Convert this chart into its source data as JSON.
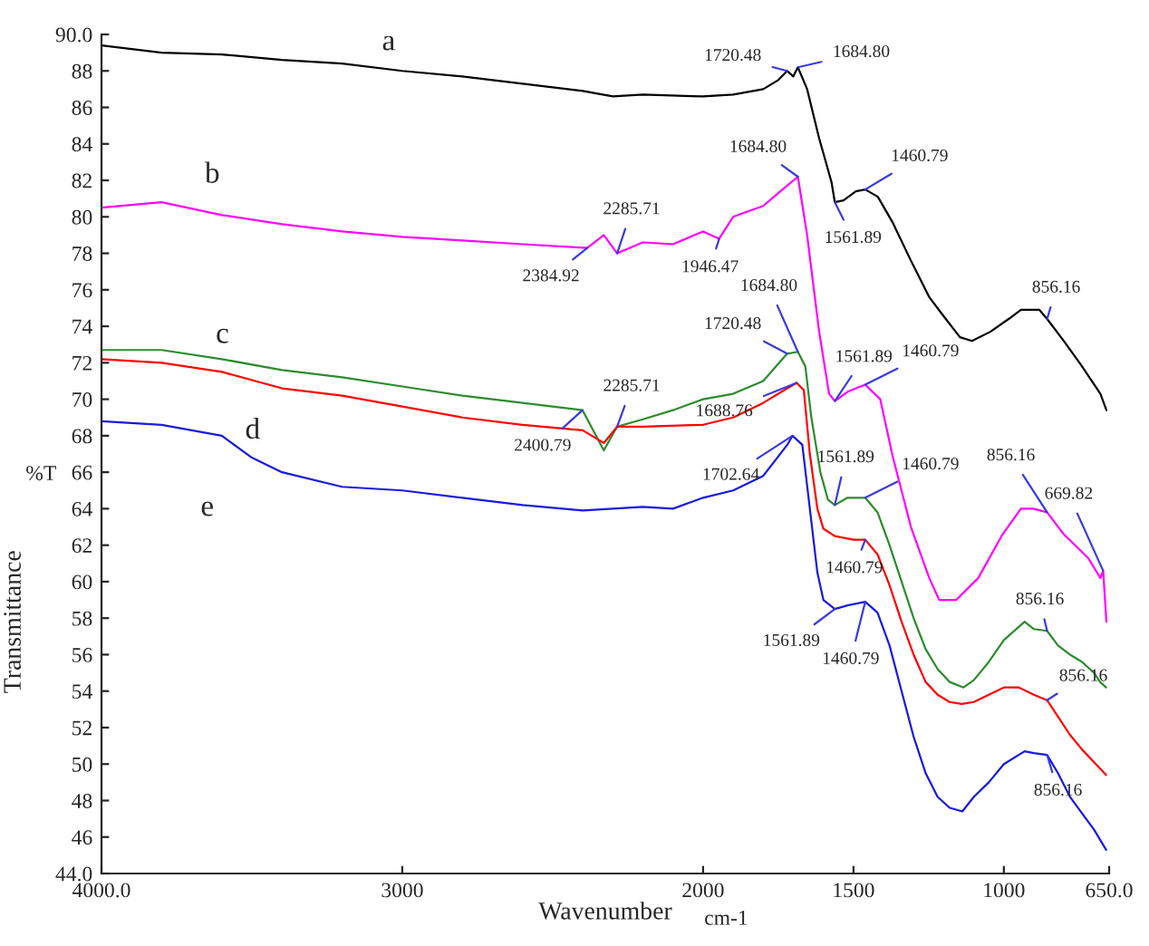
{
  "chart_data": {
    "type": "line",
    "xlabel": "Wavenumber",
    "ylabel": "Transmittance",
    "xlim": [
      4000,
      650
    ],
    "xticks": [
      {
        "value": 4000,
        "label": "4000.0"
      },
      3000,
      2000,
      1500,
      1000,
      {
        "value": 650,
        "label": "650.0"
      }
    ],
    "ylim": [
      44,
      90
    ],
    "yticks": [
      {
        "value": 44,
        "label": "44.0"
      },
      46,
      48,
      50,
      52,
      54,
      56,
      58,
      60,
      62,
      64,
      66,
      68,
      70,
      72,
      74,
      76,
      78,
      80,
      82,
      84,
      86,
      88,
      {
        "value": 90,
        "label": "90.0"
      }
    ],
    "grid": false,
    "marker": "none",
    "line_style": "solid",
    "series": [
      {
        "color": "#000000",
        "x": [
          4000,
          3800,
          3600,
          3400,
          3200,
          3000,
          2800,
          2600,
          2400,
          2300,
          2200,
          2000,
          1900,
          1800,
          1750,
          1720.48,
          1700,
          1684.8,
          1654,
          1614,
          1573,
          1561.89,
          1533,
          1492,
          1460.79,
          1419,
          1370,
          1309,
          1248,
          1207,
          1146,
          1106,
          1045,
          984,
          943,
          882,
          856.16,
          801,
          740,
          679,
          659
        ],
        "values": [
          89.4,
          89.0,
          88.9,
          88.6,
          88.4,
          88.0,
          87.7,
          87.3,
          86.9,
          86.6,
          86.7,
          86.6,
          86.7,
          87.0,
          87.5,
          88.0,
          87.7,
          88.2,
          87.0,
          84.3,
          81.9,
          80.8,
          80.9,
          81.4,
          81.5,
          81.1,
          79.7,
          77.6,
          75.6,
          74.7,
          73.4,
          73.2,
          73.7,
          74.4,
          74.9,
          74.9,
          74.4,
          73.2,
          71.8,
          70.3,
          69.4
        ]
      },
      {
        "color": "#ff00ff",
        "x": [
          4000,
          3800,
          3600,
          3400,
          3200,
          3000,
          2800,
          2600,
          2384.92,
          2330,
          2285.71,
          2200,
          2100,
          2000,
          1946.47,
          1900,
          1800,
          1750,
          1684.8,
          1654,
          1614,
          1581,
          1561.89,
          1520,
          1492,
          1460.79,
          1411,
          1370,
          1309,
          1248,
          1215,
          1158,
          1085,
          1004,
          943,
          902,
          856.16,
          801,
          720,
          679,
          669.82,
          659
        ],
        "values": [
          80.5,
          80.8,
          80.1,
          79.6,
          79.2,
          78.9,
          78.7,
          78.5,
          78.3,
          79.0,
          78.0,
          78.6,
          78.5,
          79.2,
          78.8,
          80.0,
          80.6,
          81.3,
          82.2,
          79.0,
          73.7,
          70.3,
          69.9,
          70.4,
          70.6,
          70.8,
          70.0,
          66.9,
          63.0,
          60.2,
          59.0,
          59.0,
          60.2,
          62.6,
          64.0,
          64.0,
          63.8,
          62.6,
          61.3,
          60.2,
          60.6,
          57.8
        ]
      },
      {
        "color": "#2e8b2e",
        "x": [
          4000,
          3800,
          3600,
          3400,
          3200,
          3000,
          2800,
          2600,
          2400.79,
          2330,
          2285.71,
          2200,
          2100,
          2000,
          1900,
          1800,
          1720.48,
          1684.8,
          1660,
          1640,
          1610,
          1585,
          1561.89,
          1520,
          1460.79,
          1420,
          1380,
          1340,
          1300,
          1260,
          1220,
          1180,
          1134,
          1100,
          1050,
          1000,
          931,
          900,
          856.16,
          820,
          780,
          740,
          700,
          680,
          660
        ],
        "values": [
          72.7,
          72.7,
          72.2,
          71.6,
          71.2,
          70.7,
          70.2,
          69.8,
          69.4,
          67.2,
          68.5,
          68.9,
          69.4,
          70.0,
          70.3,
          71.0,
          72.5,
          72.6,
          71.8,
          69.0,
          66.0,
          64.5,
          64.2,
          64.6,
          64.6,
          63.8,
          62.0,
          60.0,
          58.0,
          56.3,
          55.2,
          54.5,
          54.2,
          54.6,
          55.6,
          56.8,
          57.8,
          57.4,
          57.3,
          56.5,
          56.0,
          55.6,
          55.0,
          54.5,
          54.2
        ]
      },
      {
        "color": "#ff0000",
        "x": [
          4000,
          3800,
          3600,
          3400,
          3200,
          3000,
          2800,
          2600,
          2400,
          2330,
          2285,
          2200,
          2000,
          1900,
          1800,
          1720,
          1688.76,
          1665,
          1645,
          1620,
          1600,
          1561.89,
          1500,
          1460.79,
          1420,
          1380,
          1340,
          1300,
          1260,
          1220,
          1180,
          1140,
          1100,
          1050,
          1000,
          950,
          900,
          856.16,
          820,
          780,
          740,
          700,
          660
        ],
        "values": [
          72.2,
          72.0,
          71.5,
          70.6,
          70.2,
          69.6,
          69.0,
          68.6,
          68.3,
          67.6,
          68.5,
          68.5,
          68.6,
          69.0,
          69.8,
          70.6,
          70.9,
          70.5,
          67.0,
          64.0,
          62.9,
          62.5,
          62.3,
          62.3,
          61.5,
          59.8,
          57.8,
          56.0,
          54.5,
          53.8,
          53.4,
          53.3,
          53.4,
          53.8,
          54.2,
          54.2,
          53.8,
          53.5,
          52.6,
          51.6,
          50.8,
          50.1,
          49.4
        ]
      },
      {
        "color": "#1a1adc",
        "x": [
          4000,
          3800,
          3600,
          3500,
          3400,
          3200,
          3000,
          2800,
          2600,
          2400,
          2300,
          2200,
          2100,
          2000,
          1900,
          1800,
          1720,
          1702.64,
          1670,
          1645,
          1620,
          1600,
          1561.89,
          1520,
          1460.79,
          1420,
          1380,
          1340,
          1300,
          1260,
          1220,
          1180,
          1138,
          1100,
          1050,
          1000,
          931,
          900,
          856.16,
          820,
          780,
          740,
          700,
          660
        ],
        "values": [
          68.8,
          68.6,
          68.0,
          66.8,
          66.0,
          65.2,
          65.0,
          64.6,
          64.2,
          63.9,
          64.0,
          64.1,
          64.0,
          64.6,
          65.0,
          65.8,
          67.5,
          68.0,
          67.5,
          64.0,
          60.5,
          59.0,
          58.5,
          58.7,
          58.9,
          58.3,
          56.5,
          54.0,
          51.5,
          49.5,
          48.2,
          47.6,
          47.4,
          48.2,
          49.0,
          50.0,
          50.7,
          50.6,
          50.5,
          49.5,
          48.2,
          47.3,
          46.4,
          45.3
        ]
      }
    ],
    "annotations": [
      "a",
      "b",
      "c",
      "d",
      "e",
      {
        "text": "1720.48",
        "x": 1720.48,
        "y": 88.0
      },
      {
        "text": "1684.80",
        "x": 1684.8,
        "y": 88.2
      },
      {
        "text": "2285.71",
        "x": 2285.71,
        "y": 78.0
      },
      {
        "text": "2384.92",
        "x": 2384.92,
        "y": 78.3
      },
      {
        "text": "1946.47",
        "x": 1946.47,
        "y": 78.8
      },
      {
        "text": "1684.80",
        "x": 1684.8,
        "y": 82.2
      },
      {
        "text": "1561.89",
        "x": 1561.89,
        "y": 80.8
      },
      {
        "text": "1460.79",
        "x": 1460.79,
        "y": 81.5
      },
      {
        "text": "856.16",
        "x": 856.16,
        "y": 74.4
      },
      {
        "text": "2285.71",
        "x": 2285.71,
        "y": 68.5
      },
      {
        "text": "2400.79",
        "x": 2400.79,
        "y": 69.4
      },
      {
        "text": "1684.80",
        "x": 1684.8,
        "y": 72.6
      },
      {
        "text": "1720.48",
        "x": 1720.48,
        "y": 72.5
      },
      {
        "text": "1688.76",
        "x": 1688.76,
        "y": 70.9
      },
      {
        "text": "1561.89",
        "x": 1561.89,
        "y": 69.9
      },
      {
        "text": "1460.79",
        "x": 1460.79,
        "y": 70.8
      },
      {
        "text": "1561.89",
        "x": 1561.89,
        "y": 64.2
      },
      {
        "text": "1460.79",
        "x": 1460.79,
        "y": 64.6
      },
      {
        "text": "1460.79",
        "x": 1460.79,
        "y": 62.3
      },
      {
        "text": "1702.64",
        "x": 1702.64,
        "y": 68.0
      },
      {
        "text": "1561.89",
        "x": 1561.89,
        "y": 58.5
      },
      {
        "text": "1460.79",
        "x": 1460.79,
        "y": 58.9
      },
      {
        "text": "856.16",
        "x": 856.16,
        "y": 63.8
      },
      {
        "text": "669.82",
        "x": 669.82,
        "y": 60.6
      },
      {
        "text": "856.16",
        "x": 856.16,
        "y": 57.3
      },
      {
        "text": "856.16",
        "x": 856.16,
        "y": 53.5
      },
      {
        "text": "856.16",
        "x": 856.16,
        "y": 50.5
      },
      "%T",
      "cm-1"
    ]
  }
}
